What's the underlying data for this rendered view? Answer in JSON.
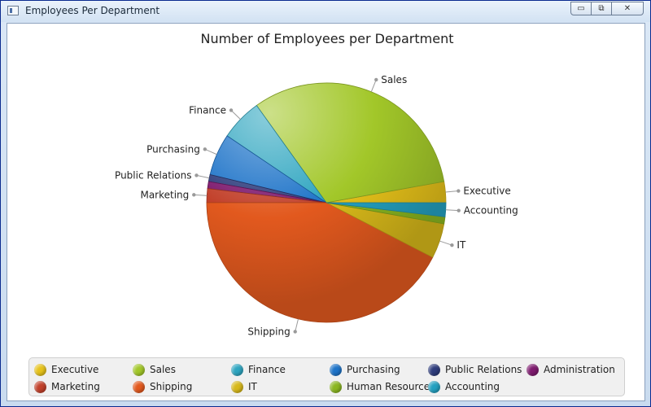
{
  "window": {
    "title": "Employees Per Department",
    "buttons": {
      "minimize": "▭",
      "maximize": "⧉",
      "close": "✕"
    }
  },
  "chart_data": {
    "type": "pie",
    "title": "Number of Employees per Department",
    "legend_position": "bottom",
    "slices": [
      {
        "label": "Executive",
        "value": 3,
        "color": "#e6c21a"
      },
      {
        "label": "Sales",
        "value": 34,
        "color": "#a2c729"
      },
      {
        "label": "Finance",
        "value": 6,
        "color": "#2ea5c0"
      },
      {
        "label": "Purchasing",
        "value": 6,
        "color": "#1d73c8"
      },
      {
        "label": "Public Relations",
        "value": 1,
        "color": "#2e3c7c"
      },
      {
        "label": "Administration",
        "value": 1,
        "color": "#7e1a6e"
      },
      {
        "label": "Marketing",
        "value": 2,
        "color": "#c2412b"
      },
      {
        "label": "Shipping",
        "value": 45,
        "color": "#e2591e"
      },
      {
        "label": "IT",
        "value": 5,
        "color": "#d7b81a"
      },
      {
        "label": "Human Resources",
        "value": 1,
        "color": "#8ab620"
      },
      {
        "label": "Accounting",
        "value": 2,
        "color": "#23a0c0"
      }
    ],
    "callouts": [
      "Shipping",
      "IT",
      "Accounting",
      "Executive",
      "Sales",
      "Finance",
      "Purchasing",
      "Public Relations",
      "Marketing"
    ]
  }
}
